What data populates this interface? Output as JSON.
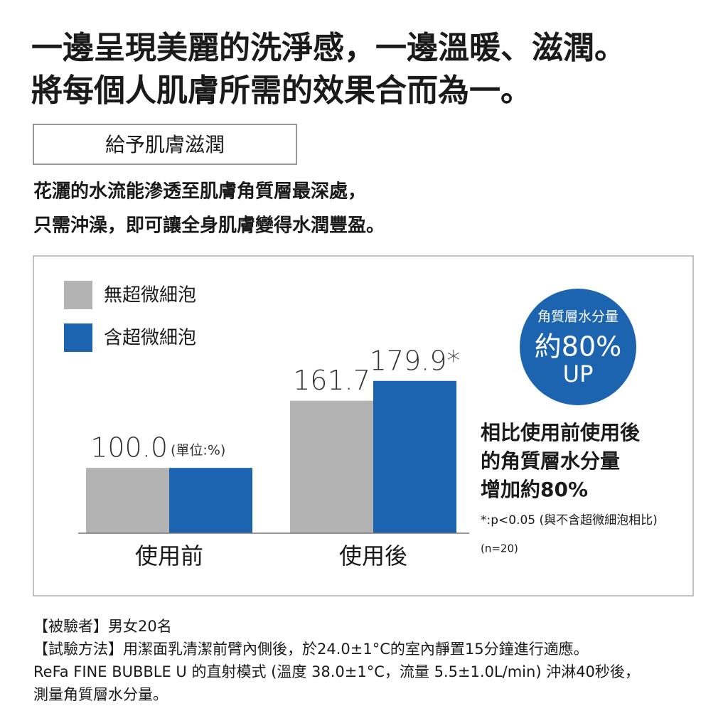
{
  "headline": [
    "一邊呈現美麗的洗淨感，一邊溫暖、滋潤。",
    "將每個人肌膚所需的效果合而為一。"
  ],
  "section_label": "給予肌膚滋潤",
  "description": [
    "花灑的水流能滲透至肌膚角質層最深處，",
    "只需沖澡，即可讓全身肌膚變得水潤豐盈。"
  ],
  "chart_data": {
    "type": "bar",
    "categories": [
      "使用前",
      "使用後"
    ],
    "series": [
      {
        "name": "無超微細泡",
        "color": "#b3b3b3",
        "values": [
          100.0,
          161.7
        ],
        "value_labels": [
          "100.0",
          "161.7"
        ]
      },
      {
        "name": "含超微細泡",
        "color": "#1d64b0",
        "values": [
          100.0,
          179.9
        ],
        "value_labels": [
          null,
          "179.9*"
        ]
      }
    ],
    "unit_label": "(單位:%)",
    "ylim": [
      40,
      200
    ],
    "badge": [
      "角質層水分量",
      "約80%",
      "UP"
    ],
    "summary": [
      "相比使用前使用後",
      "的角質層水分量",
      "增加約80%"
    ],
    "note": "*:p<0.05 (與不含超微細泡相比)",
    "sample": "(n=20)"
  },
  "footnotes": [
    "【被驗者】男女20名",
    "【試驗方法】用潔面乳清潔前臂內側後，於24.0±1°C的室內靜置15分鐘進行適應。",
    "ReFa FINE BUBBLE U 的直射模式 (溫度 38.0±1°C，流量 5.5±1.0L/min) 沖淋40秒後，",
    "測量角質層水分量。"
  ]
}
